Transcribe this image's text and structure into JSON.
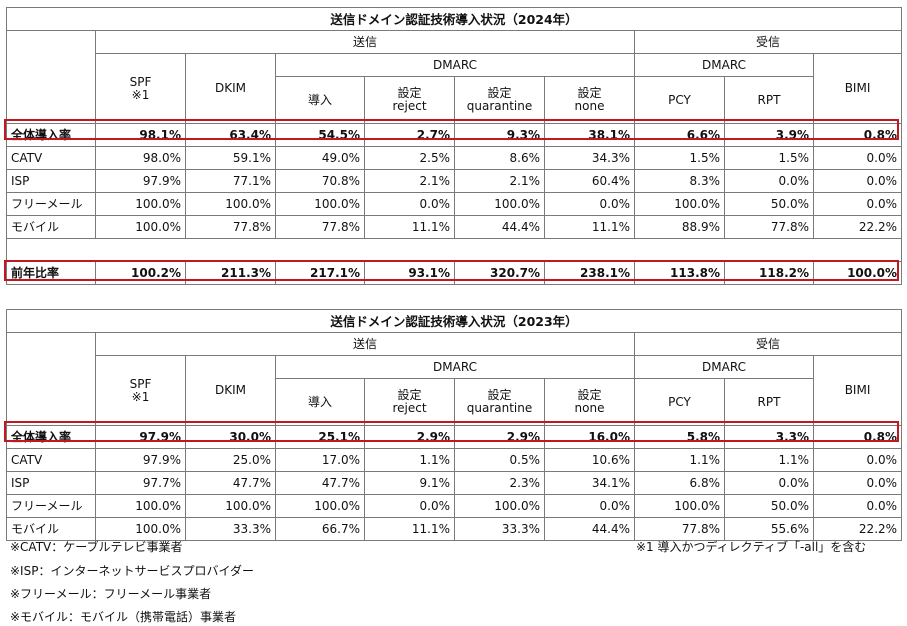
{
  "header": {
    "send": "送信",
    "dmarc": "DMARC",
    "recv": "受信",
    "spf": "SPF",
    "spf_note": "※1",
    "dkim": "DKIM",
    "deploy": "導入",
    "set": "設定",
    "reject": "reject",
    "quarantine": "quarantine",
    "none": "none",
    "pcy": "PCY",
    "rpt": "RPT",
    "bimi": "BIMI"
  },
  "t2024": {
    "title": "送信ドメイン認証技術導入状況（2024年）",
    "total": [
      "全体導入率",
      "98.1%",
      "63.4%",
      "54.5%",
      "2.7%",
      "9.3%",
      "38.1%",
      "6.6%",
      "3.9%",
      "0.8%"
    ],
    "rows": [
      [
        "CATV",
        "98.0%",
        "59.1%",
        "49.0%",
        "2.5%",
        "8.6%",
        "34.3%",
        "1.5%",
        "1.5%",
        "0.0%"
      ],
      [
        "ISP",
        "97.9%",
        "77.1%",
        "70.8%",
        "2.1%",
        "2.1%",
        "60.4%",
        "8.3%",
        "0.0%",
        "0.0%"
      ],
      [
        "フリーメール",
        "100.0%",
        "100.0%",
        "100.0%",
        "0.0%",
        "100.0%",
        "0.0%",
        "100.0%",
        "50.0%",
        "0.0%"
      ],
      [
        "モバイル",
        "100.0%",
        "77.8%",
        "77.8%",
        "11.1%",
        "44.4%",
        "11.1%",
        "88.9%",
        "77.8%",
        "22.2%"
      ]
    ],
    "ratio": [
      "前年比率",
      "100.2%",
      "211.3%",
      "217.1%",
      "93.1%",
      "320.7%",
      "238.1%",
      "113.8%",
      "118.2%",
      "100.0%"
    ]
  },
  "t2023": {
    "title": "送信ドメイン認証技術導入状況（2023年）",
    "total": [
      "全体導入率",
      "97.9%",
      "30.0%",
      "25.1%",
      "2.9%",
      "2.9%",
      "16.0%",
      "5.8%",
      "3.3%",
      "0.8%"
    ],
    "rows": [
      [
        "CATV",
        "97.9%",
        "25.0%",
        "17.0%",
        "1.1%",
        "0.5%",
        "10.6%",
        "1.1%",
        "1.1%",
        "0.0%"
      ],
      [
        "ISP",
        "97.7%",
        "47.7%",
        "47.7%",
        "9.1%",
        "2.3%",
        "34.1%",
        "6.8%",
        "0.0%",
        "0.0%"
      ],
      [
        "フリーメール",
        "100.0%",
        "100.0%",
        "100.0%",
        "0.0%",
        "100.0%",
        "0.0%",
        "100.0%",
        "50.0%",
        "0.0%"
      ],
      [
        "モバイル",
        "100.0%",
        "33.3%",
        "66.7%",
        "11.1%",
        "33.3%",
        "44.4%",
        "77.8%",
        "55.6%",
        "22.2%"
      ]
    ]
  },
  "notes": {
    "catv": "※CATV：ケーブルテレビ事業者",
    "isp": "※ISP：インターネットサービスプロバイダー",
    "free": "※フリーメール：フリーメール事業者",
    "mobile": "※モバイル：モバイル（携帯電話）事業者",
    "spf1": "※1 導入かつディレクティブ「-all」を含む"
  },
  "colors": {
    "highlight": "#c0181e",
    "border": "#7a7a7a"
  }
}
